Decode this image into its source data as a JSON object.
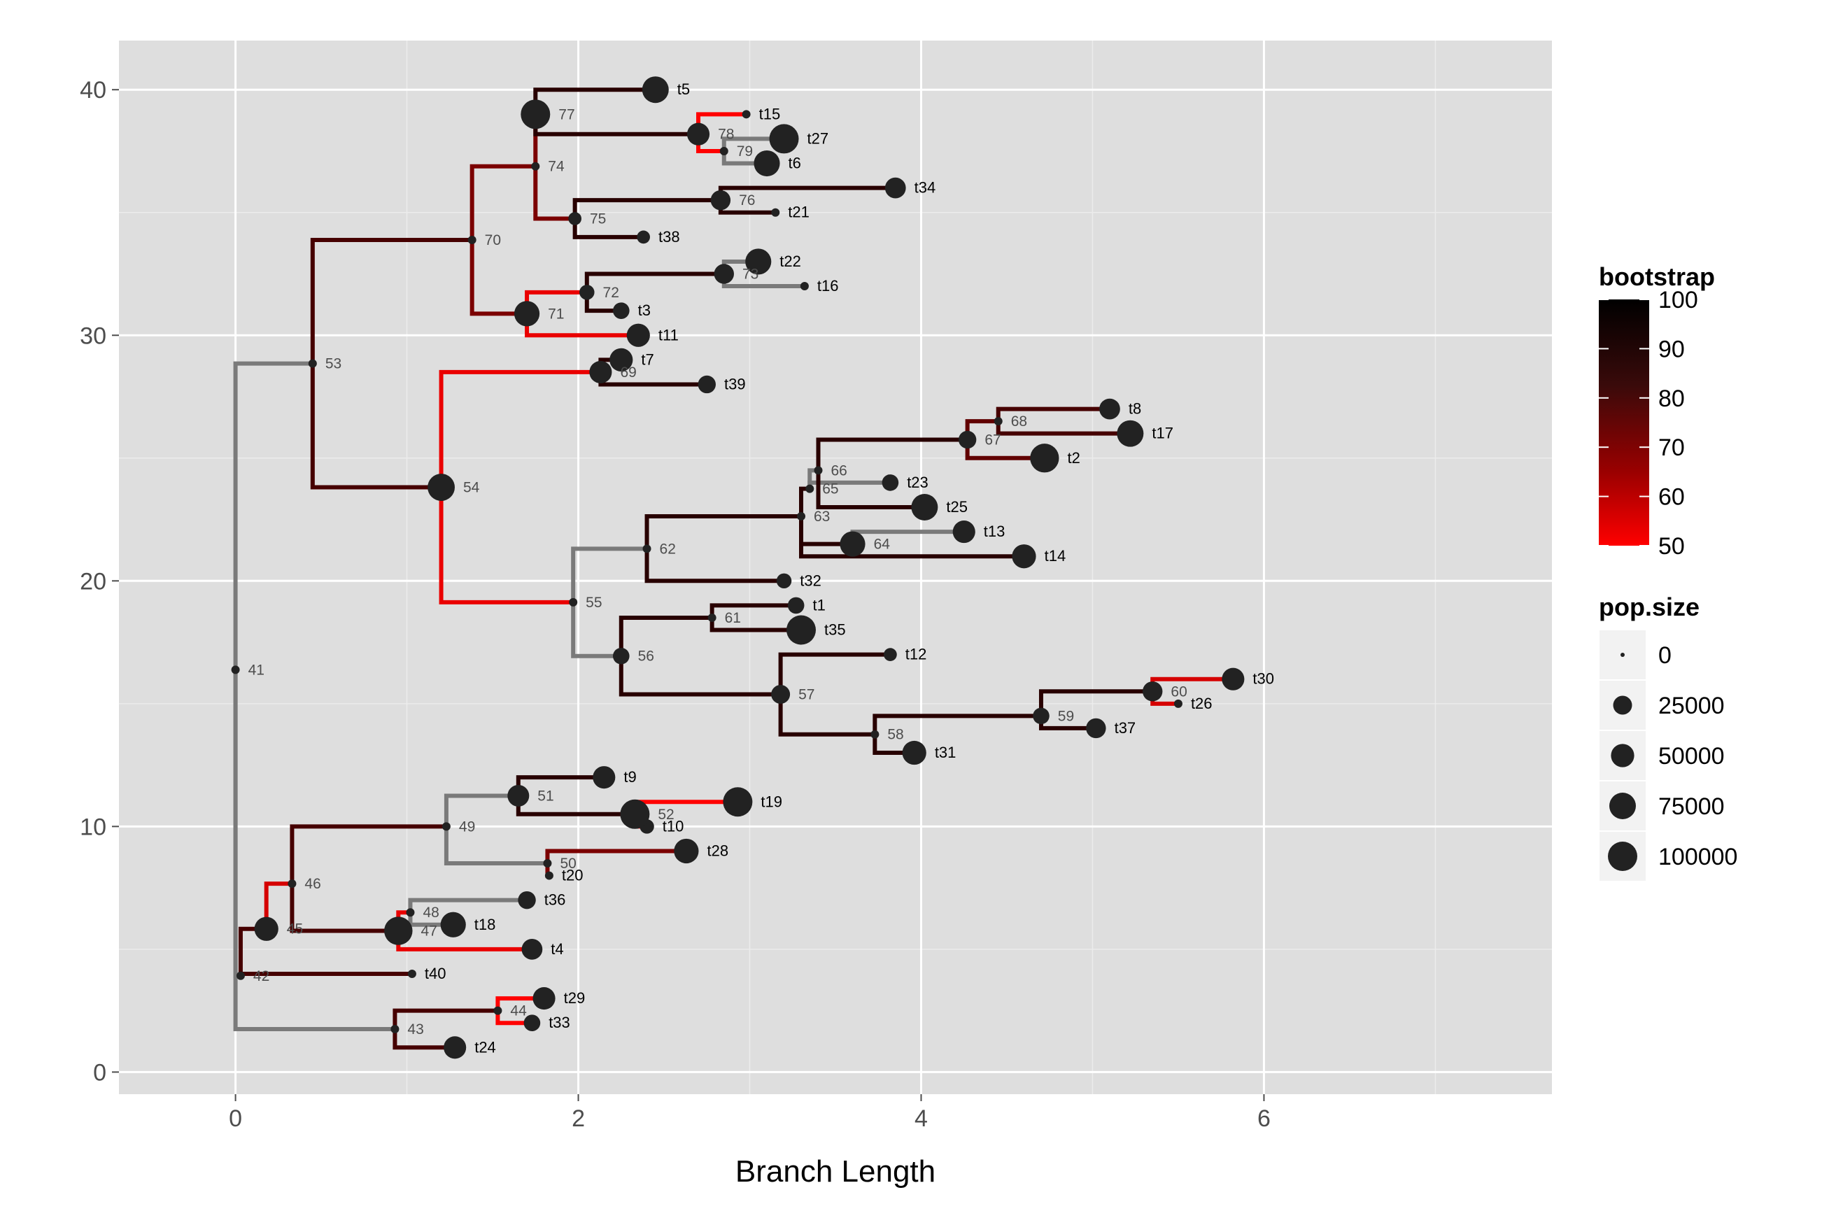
{
  "chart_data": {
    "type": "tree",
    "xlabel": "Branch Length",
    "xlim": [
      -0.68,
      7.68
    ],
    "ylim": [
      -0.9,
      42.0
    ],
    "x_ticks": [
      0,
      2,
      4,
      6
    ],
    "x_tick_labels": [
      "0",
      "2",
      "4",
      "6"
    ],
    "y_ticks": [
      0,
      10,
      20,
      30,
      40
    ],
    "y_tick_labels": [
      "0",
      "10",
      "20",
      "30",
      "40"
    ],
    "grid": true,
    "legend_position": "right",
    "colors": {
      "panel": "#dedede",
      "grid_major": "#ffffff",
      "grid_minor": "#ececec",
      "bootstrap_high": "#000000",
      "bootstrap_low": "#ff0000",
      "missing_bootstrap": "#7a7a7a",
      "point": "#222222"
    },
    "legend_bootstrap": {
      "title": "bootstrap",
      "labels": [
        "100",
        "90",
        "80",
        "70",
        "60",
        "50"
      ],
      "values": [
        100,
        90,
        80,
        70,
        60,
        50
      ]
    },
    "legend_popsize": {
      "title": "pop.size",
      "labels": [
        "0",
        "25000",
        "50000",
        "75000",
        "100000"
      ],
      "values": [
        0,
        25000,
        50000,
        75000,
        100000
      ]
    },
    "nodes": [
      {
        "id": 1,
        "label": "t1",
        "parent": 61,
        "x": 3.27,
        "y": 19,
        "pop": 15000,
        "tip": true
      },
      {
        "id": 2,
        "label": "t2",
        "parent": 67,
        "x": 4.72,
        "y": 25,
        "pop": 95000,
        "tip": true
      },
      {
        "id": 3,
        "label": "t3",
        "parent": 72,
        "x": 2.25,
        "y": 31,
        "pop": 15000,
        "tip": true
      },
      {
        "id": 4,
        "label": "t4",
        "parent": 47,
        "x": 1.73,
        "y": 5,
        "pop": 35000,
        "tip": true
      },
      {
        "id": 5,
        "label": "t5",
        "parent": 77,
        "x": 2.45,
        "y": 40,
        "pop": 75000,
        "tip": true
      },
      {
        "id": 6,
        "label": "t6",
        "parent": 79,
        "x": 3.1,
        "y": 37,
        "pop": 70000,
        "tip": true
      },
      {
        "id": 7,
        "label": "t7",
        "parent": 69,
        "x": 2.25,
        "y": 29,
        "pop": 50000,
        "tip": true
      },
      {
        "id": 8,
        "label": "t8",
        "parent": 68,
        "x": 5.1,
        "y": 27,
        "pop": 35000,
        "tip": true
      },
      {
        "id": 9,
        "label": "t9",
        "parent": 51,
        "x": 2.15,
        "y": 12,
        "pop": 45000,
        "tip": true
      },
      {
        "id": 10,
        "label": "t10",
        "parent": 52,
        "x": 2.4,
        "y": 10,
        "pop": 8000,
        "tip": true
      },
      {
        "id": 11,
        "label": "t11",
        "parent": 71,
        "x": 2.35,
        "y": 30,
        "pop": 50000,
        "tip": true
      },
      {
        "id": 12,
        "label": "t12",
        "parent": 57,
        "x": 3.82,
        "y": 17,
        "pop": 5000,
        "tip": true
      },
      {
        "id": 13,
        "label": "t13",
        "parent": 64,
        "x": 4.25,
        "y": 22,
        "pop": 45000,
        "tip": true
      },
      {
        "id": 14,
        "label": "t14",
        "parent": 63,
        "x": 4.6,
        "y": 21,
        "pop": 55000,
        "tip": true
      },
      {
        "id": 15,
        "label": "t15",
        "parent": 78,
        "x": 2.98,
        "y": 39,
        "pop": 0,
        "tip": true
      },
      {
        "id": 16,
        "label": "t16",
        "parent": 73,
        "x": 3.32,
        "y": 32,
        "pop": 0,
        "tip": true
      },
      {
        "id": 17,
        "label": "t17",
        "parent": 68,
        "x": 5.22,
        "y": 26,
        "pop": 75000,
        "tip": true
      },
      {
        "id": 18,
        "label": "t18",
        "parent": 48,
        "x": 1.27,
        "y": 6,
        "pop": 65000,
        "tip": true
      },
      {
        "id": 19,
        "label": "t19",
        "parent": 52,
        "x": 2.93,
        "y": 11,
        "pop": 100000,
        "tip": true
      },
      {
        "id": 20,
        "label": "t20",
        "parent": 50,
        "x": 1.83,
        "y": 8,
        "pop": 0,
        "tip": true
      },
      {
        "id": 21,
        "label": "t21",
        "parent": 76,
        "x": 3.15,
        "y": 35,
        "pop": 0,
        "tip": true
      },
      {
        "id": 22,
        "label": "t22",
        "parent": 73,
        "x": 3.05,
        "y": 33,
        "pop": 70000,
        "tip": true
      },
      {
        "id": 23,
        "label": "t23",
        "parent": 65,
        "x": 3.82,
        "y": 24,
        "pop": 15000,
        "tip": true
      },
      {
        "id": 24,
        "label": "t24",
        "parent": 43,
        "x": 1.28,
        "y": 1,
        "pop": 45000,
        "tip": true
      },
      {
        "id": 25,
        "label": "t25",
        "parent": 66,
        "x": 4.02,
        "y": 23,
        "pop": 75000,
        "tip": true
      },
      {
        "id": 26,
        "label": "t26",
        "parent": 60,
        "x": 5.5,
        "y": 15,
        "pop": 0,
        "tip": true
      },
      {
        "id": 27,
        "label": "t27",
        "parent": 79,
        "x": 3.2,
        "y": 38,
        "pop": 100000,
        "tip": true
      },
      {
        "id": 28,
        "label": "t28",
        "parent": 50,
        "x": 2.63,
        "y": 9,
        "pop": 60000,
        "tip": true
      },
      {
        "id": 29,
        "label": "t29",
        "parent": 44,
        "x": 1.8,
        "y": 3,
        "pop": 45000,
        "tip": true
      },
      {
        "id": 30,
        "label": "t30",
        "parent": 60,
        "x": 5.82,
        "y": 16,
        "pop": 45000,
        "tip": true
      },
      {
        "id": 31,
        "label": "t31",
        "parent": 58,
        "x": 3.96,
        "y": 13,
        "pop": 55000,
        "tip": true
      },
      {
        "id": 32,
        "label": "t32",
        "parent": 62,
        "x": 3.2,
        "y": 20,
        "pop": 10000,
        "tip": true
      },
      {
        "id": 33,
        "label": "t33",
        "parent": 44,
        "x": 1.73,
        "y": 2,
        "pop": 15000,
        "tip": true
      },
      {
        "id": 34,
        "label": "t34",
        "parent": 76,
        "x": 3.85,
        "y": 36,
        "pop": 35000,
        "tip": true
      },
      {
        "id": 35,
        "label": "t35",
        "parent": 61,
        "x": 3.3,
        "y": 18,
        "pop": 100000,
        "tip": true
      },
      {
        "id": 36,
        "label": "t36",
        "parent": 48,
        "x": 1.7,
        "y": 7,
        "pop": 20000,
        "tip": true
      },
      {
        "id": 37,
        "label": "t37",
        "parent": 59,
        "x": 5.02,
        "y": 14,
        "pop": 30000,
        "tip": true
      },
      {
        "id": 38,
        "label": "t38",
        "parent": 75,
        "x": 2.38,
        "y": 34,
        "pop": 5000,
        "tip": true
      },
      {
        "id": 39,
        "label": "t39",
        "parent": 69,
        "x": 2.75,
        "y": 28,
        "pop": 20000,
        "tip": true
      },
      {
        "id": 40,
        "label": "t40",
        "parent": 42,
        "x": 1.03,
        "y": 4,
        "pop": 0,
        "tip": true
      },
      {
        "id": 41,
        "label": "41",
        "parent": null,
        "x": 0.0,
        "y": 16.38,
        "pop": 0,
        "tip": false,
        "bootstrap": null
      },
      {
        "id": 42,
        "label": "42",
        "parent": 41,
        "x": 0.03,
        "y": 3.92,
        "pop": 0,
        "tip": false,
        "bootstrap": 90
      },
      {
        "id": 43,
        "label": "43",
        "parent": 41,
        "x": 0.93,
        "y": 1.75,
        "pop": 0,
        "tip": false,
        "bootstrap": 90
      },
      {
        "id": 44,
        "label": "44",
        "parent": 43,
        "x": 1.53,
        "y": 2.5,
        "pop": 0,
        "tip": false,
        "bootstrap": 50
      },
      {
        "id": 45,
        "label": "45",
        "parent": 42,
        "x": 0.18,
        "y": 5.83,
        "pop": 55000,
        "tip": false,
        "bootstrap": 60
      },
      {
        "id": 46,
        "label": "46",
        "parent": 45,
        "x": 0.33,
        "y": 7.67,
        "pop": 0,
        "tip": false,
        "bootstrap": 90
      },
      {
        "id": 47,
        "label": "47",
        "parent": 46,
        "x": 0.95,
        "y": 5.75,
        "pop": 90000,
        "tip": false,
        "bootstrap": 55
      },
      {
        "id": 48,
        "label": "48",
        "parent": 47,
        "x": 1.02,
        "y": 6.5,
        "pop": 0,
        "tip": false,
        "bootstrap": null
      },
      {
        "id": 49,
        "label": "49",
        "parent": 46,
        "x": 1.23,
        "y": 10.0,
        "pop": 0,
        "tip": false,
        "bootstrap": null
      },
      {
        "id": 50,
        "label": "50",
        "parent": 49,
        "x": 1.82,
        "y": 8.5,
        "pop": 0,
        "tip": false,
        "bootstrap": 80
      },
      {
        "id": 51,
        "label": "51",
        "parent": 49,
        "x": 1.65,
        "y": 11.25,
        "pop": 40000,
        "tip": false,
        "bootstrap": 95
      },
      {
        "id": 52,
        "label": "52",
        "parent": 51,
        "x": 2.33,
        "y": 10.5,
        "pop": 100000,
        "tip": false,
        "bootstrap": 50
      },
      {
        "id": 53,
        "label": "53",
        "parent": 41,
        "x": 0.45,
        "y": 28.85,
        "pop": 0,
        "tip": false,
        "bootstrap": 90
      },
      {
        "id": 54,
        "label": "54",
        "parent": 53,
        "x": 1.2,
        "y": 23.81,
        "pop": 80000,
        "tip": false,
        "bootstrap": 55
      },
      {
        "id": 55,
        "label": "55",
        "parent": 54,
        "x": 1.97,
        "y": 19.13,
        "pop": 0,
        "tip": false,
        "bootstrap": null
      },
      {
        "id": 56,
        "label": "56",
        "parent": 55,
        "x": 2.25,
        "y": 16.94,
        "pop": 15000,
        "tip": false,
        "bootstrap": 95
      },
      {
        "id": 57,
        "label": "57",
        "parent": 56,
        "x": 3.18,
        "y": 15.38,
        "pop": 25000,
        "tip": false,
        "bootstrap": 95
      },
      {
        "id": 58,
        "label": "58",
        "parent": 57,
        "x": 3.73,
        "y": 13.75,
        "pop": 0,
        "tip": false,
        "bootstrap": 95
      },
      {
        "id": 59,
        "label": "59",
        "parent": 58,
        "x": 4.7,
        "y": 14.5,
        "pop": 15000,
        "tip": false,
        "bootstrap": 95
      },
      {
        "id": 60,
        "label": "60",
        "parent": 59,
        "x": 5.35,
        "y": 15.5,
        "pop": 30000,
        "tip": false,
        "bootstrap": 60
      },
      {
        "id": 61,
        "label": "61",
        "parent": 56,
        "x": 2.78,
        "y": 18.5,
        "pop": 0,
        "tip": false,
        "bootstrap": 95
      },
      {
        "id": 62,
        "label": "62",
        "parent": 55,
        "x": 2.4,
        "y": 21.31,
        "pop": 0,
        "tip": false,
        "bootstrap": 95
      },
      {
        "id": 63,
        "label": "63",
        "parent": 62,
        "x": 3.3,
        "y": 22.63,
        "pop": 0,
        "tip": false,
        "bootstrap": 95
      },
      {
        "id": 64,
        "label": "64",
        "parent": 63,
        "x": 3.6,
        "y": 21.5,
        "pop": 65000,
        "tip": false,
        "bootstrap": null
      },
      {
        "id": 65,
        "label": "65",
        "parent": 63,
        "x": 3.35,
        "y": 23.75,
        "pop": 0,
        "tip": false,
        "bootstrap": null
      },
      {
        "id": 66,
        "label": "66",
        "parent": 65,
        "x": 3.4,
        "y": 24.5,
        "pop": 0,
        "tip": false,
        "bootstrap": 95
      },
      {
        "id": 67,
        "label": "67",
        "parent": 66,
        "x": 4.27,
        "y": 25.75,
        "pop": 20000,
        "tip": false,
        "bootstrap": 85
      },
      {
        "id": 68,
        "label": "68",
        "parent": 67,
        "x": 4.45,
        "y": 26.5,
        "pop": 0,
        "tip": false,
        "bootstrap": 90
      },
      {
        "id": 69,
        "label": "69",
        "parent": 54,
        "x": 2.13,
        "y": 28.5,
        "pop": 45000,
        "tip": false,
        "bootstrap": 95
      },
      {
        "id": 70,
        "label": "70",
        "parent": 53,
        "x": 1.38,
        "y": 33.88,
        "pop": 0,
        "tip": false,
        "bootstrap": 80
      },
      {
        "id": 71,
        "label": "71",
        "parent": 70,
        "x": 1.7,
        "y": 30.88,
        "pop": 65000,
        "tip": false,
        "bootstrap": 55
      },
      {
        "id": 72,
        "label": "72",
        "parent": 71,
        "x": 2.05,
        "y": 31.75,
        "pop": 10000,
        "tip": false,
        "bootstrap": 95
      },
      {
        "id": 73,
        "label": "73",
        "parent": 72,
        "x": 2.85,
        "y": 32.5,
        "pop": 30000,
        "tip": false,
        "bootstrap": null
      },
      {
        "id": 74,
        "label": "74",
        "parent": 70,
        "x": 1.75,
        "y": 36.88,
        "pop": 0,
        "tip": false,
        "bootstrap": 80
      },
      {
        "id": 75,
        "label": "75",
        "parent": 74,
        "x": 1.98,
        "y": 34.75,
        "pop": 5000,
        "tip": false,
        "bootstrap": 95
      },
      {
        "id": 76,
        "label": "76",
        "parent": 75,
        "x": 2.83,
        "y": 35.5,
        "pop": 30000,
        "tip": false,
        "bootstrap": 95
      },
      {
        "id": 77,
        "label": "77",
        "parent": 74,
        "x": 1.75,
        "y": 39.0,
        "pop": 100000,
        "tip": false,
        "bootstrap": 95
      },
      {
        "id": 78,
        "label": "78",
        "parent": 77,
        "x": 2.7,
        "y": 38.19,
        "pop": 45000,
        "tip": false,
        "bootstrap": 50
      },
      {
        "id": 79,
        "label": "79",
        "parent": 78,
        "x": 2.85,
        "y": 37.5,
        "pop": 0,
        "tip": false,
        "bootstrap": null
      }
    ]
  }
}
